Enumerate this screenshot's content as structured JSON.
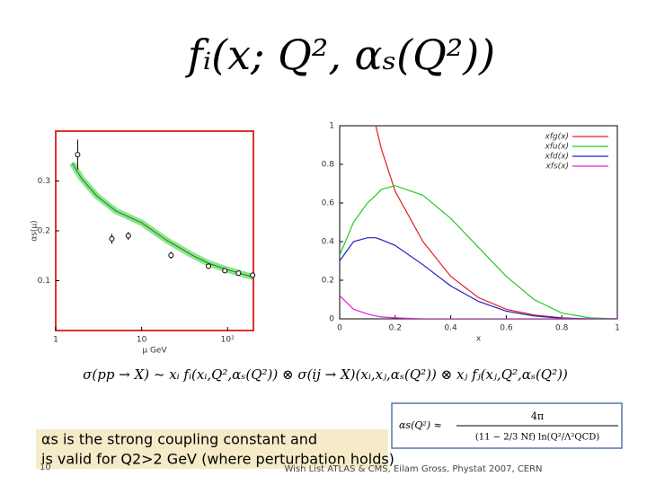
{
  "header": {
    "formula": "fᵢ(x; Q², αₛ(Q²))"
  },
  "chart_data": [
    {
      "type": "scatter",
      "xscale": "log",
      "xlim": [
        1,
        200
      ],
      "ylim": [
        0,
        0.4
      ],
      "xticks": [
        1,
        10,
        {
          "value": 100,
          "label": "10²"
        }
      ],
      "yticks": [
        0.1,
        0.2,
        0.3
      ],
      "xlabel": "μ GeV",
      "ylabel": "αs(μ)",
      "color": "#000000",
      "frame_color": "#e03030",
      "x": [
        1.8,
        4.5,
        7,
        22,
        60,
        93,
        134,
        196
      ],
      "values": [
        0.353,
        0.184,
        0.19,
        0.151,
        0.129,
        0.12,
        0.115,
        0.111
      ],
      "errors": [
        0.03,
        0.01,
        0.008,
        0.007,
        0.005,
        0.003,
        0.003,
        0.002
      ],
      "curve": {
        "color": "#33cc33",
        "x": [
          1.55,
          2,
          3,
          5,
          10,
          20,
          40,
          60,
          100,
          200
        ],
        "values": [
          0.336,
          0.305,
          0.27,
          0.24,
          0.216,
          0.18,
          0.15,
          0.135,
          0.122,
          0.107
        ]
      }
    },
    {
      "type": "line",
      "xlim": [
        0,
        1
      ],
      "ylim": [
        0,
        1
      ],
      "xticks": [
        0,
        0.2,
        0.4,
        0.6,
        0.8,
        1
      ],
      "yticks": [
        0,
        0.2,
        0.4,
        0.6,
        0.8,
        1
      ],
      "xlabel": "x",
      "legend": "upper right",
      "x": [
        0,
        0.05,
        0.1,
        0.13,
        0.15,
        0.2,
        0.3,
        0.4,
        0.5,
        0.6,
        0.7,
        0.8,
        0.9,
        1
      ],
      "series": [
        {
          "name": "xfg(x)",
          "color": "#e02020",
          "values": [
            null,
            null,
            null,
            1.0,
            0.88,
            0.66,
            0.4,
            0.22,
            0.11,
            0.05,
            0.02,
            0.005,
            0,
            0
          ]
        },
        {
          "name": "xfu(x)",
          "color": "#22cc22",
          "values": [
            0.33,
            0.5,
            0.6,
            0.64,
            0.67,
            0.69,
            0.64,
            0.52,
            0.37,
            0.22,
            0.1,
            0.03,
            0.005,
            0
          ]
        },
        {
          "name": "xfd(x)",
          "color": "#2020c0",
          "values": [
            0.3,
            0.4,
            0.42,
            0.42,
            0.41,
            0.38,
            0.28,
            0.17,
            0.09,
            0.04,
            0.015,
            0.003,
            0,
            0
          ]
        },
        {
          "name": "xfs(x)",
          "color": "#dd22dd",
          "values": [
            0.12,
            0.05,
            0.025,
            0.015,
            0.01,
            0.005,
            0,
            0,
            0,
            0,
            0,
            0,
            0,
            0
          ]
        }
      ]
    }
  ],
  "cross_section": "σ(pp → X) ~ xᵢ fᵢ(xᵢ,Q²,αₛ(Q²)) ⊗ σ(ij → X)(xᵢ,xⱼ,αₛ(Q²)) ⊗ xⱼ fⱼ(xⱼ,Q²,αₛ(Q²))",
  "coupling": {
    "lhs": "αs(Q²) ≈",
    "numerator": "4π",
    "denominator": "(11 − 2/3 Nf) ln(Q²/Λ²QCD)"
  },
  "notes": [
    "αs is the strong coupling constant and",
    "is valid for Q2>2 GeV (where perturbation holds)"
  ],
  "footer": {
    "page": "10",
    "text": "Wish List ATLAS & CMS, Eilam Gross, Phystat 2007, CERN"
  }
}
